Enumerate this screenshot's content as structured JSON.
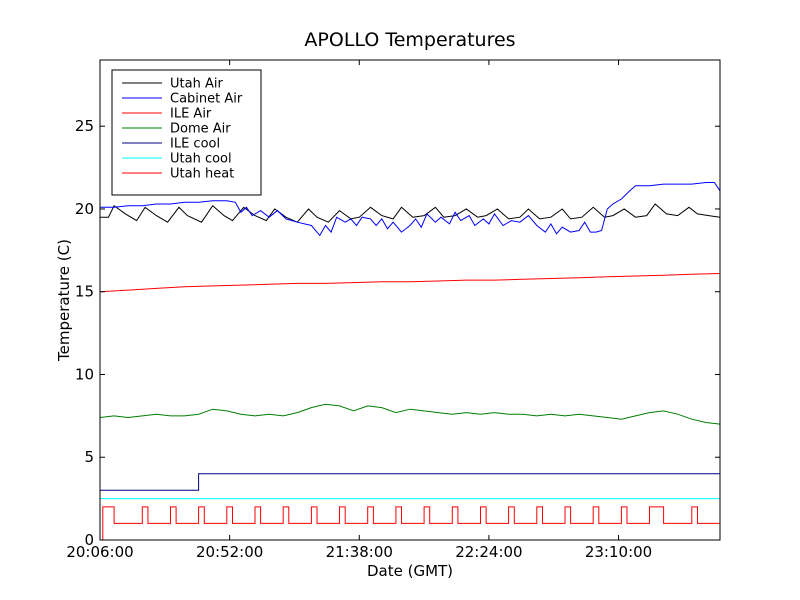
{
  "chart_data": {
    "type": "line",
    "title": "APOLLO Temperatures",
    "xlabel": "Date (GMT)",
    "ylabel": "Temperature (C)",
    "x_unit": "minutes since 20:06:00 GMT",
    "xlim": [
      0,
      220
    ],
    "ylim": [
      0,
      29
    ],
    "x_ticks": [
      {
        "value": 0,
        "label": "20:06:00"
      },
      {
        "value": 46,
        "label": "20:52:00"
      },
      {
        "value": 92,
        "label": "21:38:00"
      },
      {
        "value": 138,
        "label": "22:24:00"
      },
      {
        "value": 184,
        "label": "23:10:00"
      }
    ],
    "y_ticks": [
      {
        "value": 0,
        "label": "0"
      },
      {
        "value": 5,
        "label": "5"
      },
      {
        "value": 10,
        "label": "10"
      },
      {
        "value": 15,
        "label": "15"
      },
      {
        "value": 20,
        "label": "20"
      },
      {
        "value": 25,
        "label": "25"
      }
    ],
    "legend_position": "top-left",
    "series": [
      {
        "name": "Utah Air",
        "color": "#000000",
        "step": false,
        "x": [
          0,
          3,
          5,
          9,
          13,
          16,
          20,
          24,
          28,
          31,
          36,
          40,
          44,
          47,
          51,
          55,
          59,
          62,
          66,
          70,
          74,
          77,
          81,
          85,
          89,
          92,
          96,
          100,
          104,
          107,
          111,
          115,
          119,
          122,
          126,
          130,
          134,
          137,
          141,
          145,
          149,
          152,
          156,
          160,
          164,
          167,
          171,
          175,
          179,
          182,
          186,
          190,
          194,
          197,
          201,
          205,
          209,
          212,
          216,
          220
        ],
        "y": [
          19.5,
          19.5,
          20.2,
          19.7,
          19.3,
          20.1,
          19.6,
          19.2,
          20.1,
          19.6,
          19.2,
          20.2,
          19.6,
          19.3,
          20.1,
          19.6,
          19.3,
          20.0,
          19.5,
          19.2,
          20.0,
          19.5,
          19.2,
          19.9,
          19.4,
          19.5,
          20.1,
          19.6,
          19.4,
          20.1,
          19.5,
          19.6,
          20.1,
          19.5,
          19.6,
          20.0,
          19.5,
          19.6,
          20.0,
          19.4,
          19.5,
          20.0,
          19.4,
          19.5,
          20.0,
          19.4,
          19.5,
          20.1,
          19.5,
          19.6,
          20.0,
          19.5,
          19.6,
          20.3,
          19.7,
          19.6,
          20.1,
          19.7,
          19.6,
          19.5
        ]
      },
      {
        "name": "Cabinet Air",
        "color": "#0000ff",
        "step": false,
        "x": [
          0,
          5,
          10,
          15,
          20,
          25,
          30,
          35,
          40,
          45,
          48,
          50,
          52,
          54,
          57,
          60,
          63,
          66,
          70,
          75,
          78,
          80,
          82,
          84,
          87,
          89,
          91,
          93,
          96,
          98,
          100,
          102,
          104,
          107,
          110,
          112,
          114,
          116,
          119,
          121,
          124,
          126,
          128,
          131,
          133,
          136,
          138,
          140,
          143,
          146,
          149,
          152,
          155,
          158,
          160,
          162,
          164,
          167,
          170,
          172,
          174,
          176,
          178,
          180,
          182,
          185,
          188,
          190,
          195,
          200,
          205,
          210,
          215,
          218,
          220
        ],
        "y": [
          20.1,
          20.1,
          20.2,
          20.2,
          20.3,
          20.3,
          20.4,
          20.4,
          20.5,
          20.5,
          20.4,
          19.8,
          20.1,
          19.6,
          19.9,
          19.5,
          19.9,
          19.4,
          19.2,
          19.0,
          18.4,
          19.0,
          18.6,
          19.5,
          19.2,
          19.4,
          19.0,
          19.5,
          19.4,
          19.0,
          19.4,
          18.8,
          19.2,
          18.6,
          19.0,
          19.4,
          18.9,
          19.7,
          19.2,
          19.5,
          19.1,
          19.8,
          19.3,
          19.6,
          19.0,
          19.4,
          19.1,
          19.7,
          19.0,
          19.3,
          19.2,
          19.6,
          19.0,
          18.6,
          19.1,
          18.5,
          18.9,
          18.6,
          18.7,
          19.2,
          18.6,
          18.6,
          18.7,
          20.0,
          20.3,
          20.6,
          21.1,
          21.4,
          21.4,
          21.5,
          21.5,
          21.5,
          21.6,
          21.6,
          21.1
        ]
      },
      {
        "name": "ILE Air",
        "color": "#ff0000",
        "step": false,
        "x": [
          0,
          10,
          20,
          30,
          40,
          50,
          60,
          70,
          80,
          90,
          100,
          110,
          120,
          130,
          140,
          150,
          160,
          170,
          180,
          190,
          200,
          210,
          220
        ],
        "y": [
          15.0,
          15.1,
          15.2,
          15.3,
          15.35,
          15.4,
          15.45,
          15.5,
          15.5,
          15.55,
          15.6,
          15.6,
          15.65,
          15.7,
          15.7,
          15.75,
          15.8,
          15.85,
          15.9,
          15.95,
          16.0,
          16.05,
          16.1
        ]
      },
      {
        "name": "Dome Air",
        "color": "#008000",
        "step": false,
        "x": [
          0,
          5,
          10,
          15,
          20,
          25,
          30,
          35,
          40,
          45,
          50,
          55,
          60,
          65,
          70,
          75,
          80,
          85,
          90,
          95,
          100,
          105,
          110,
          115,
          120,
          125,
          130,
          135,
          140,
          145,
          150,
          155,
          160,
          165,
          170,
          175,
          180,
          185,
          190,
          195,
          200,
          205,
          210,
          215,
          220
        ],
        "y": [
          7.4,
          7.5,
          7.4,
          7.5,
          7.6,
          7.5,
          7.5,
          7.6,
          7.9,
          7.8,
          7.6,
          7.5,
          7.6,
          7.5,
          7.7,
          8.0,
          8.2,
          8.1,
          7.8,
          8.1,
          8.0,
          7.7,
          7.9,
          7.8,
          7.7,
          7.6,
          7.7,
          7.6,
          7.7,
          7.6,
          7.6,
          7.5,
          7.6,
          7.5,
          7.6,
          7.5,
          7.4,
          7.3,
          7.5,
          7.7,
          7.8,
          7.6,
          7.3,
          7.1,
          7.0
        ]
      },
      {
        "name": "ILE cool",
        "color": "#000080",
        "step": true,
        "x": [
          0,
          35,
          35,
          220
        ],
        "y": [
          3.0,
          3.0,
          4.0,
          4.0
        ]
      },
      {
        "name": "Utah cool",
        "color": "#00ffff",
        "step": false,
        "x": [
          0,
          220
        ],
        "y": [
          2.5,
          2.5
        ]
      },
      {
        "name": "Utah heat",
        "color": "#ff0000",
        "step": true,
        "x": [
          1,
          1,
          2,
          2,
          5,
          5,
          15,
          15,
          17,
          17,
          25,
          25,
          27,
          27,
          35,
          35,
          37,
          37,
          45,
          45,
          47,
          47,
          55,
          55,
          57,
          57,
          65,
          65,
          67,
          67,
          75,
          75,
          77,
          77,
          85,
          85,
          87,
          87,
          95,
          95,
          97,
          97,
          105,
          105,
          107,
          107,
          115,
          115,
          117,
          117,
          125,
          125,
          127,
          127,
          135,
          135,
          137,
          137,
          145,
          145,
          147,
          147,
          155,
          155,
          157,
          157,
          165,
          165,
          167,
          167,
          175,
          175,
          177,
          177,
          185,
          185,
          187,
          187,
          195,
          195,
          200,
          200,
          210,
          210,
          212,
          212,
          220
        ],
        "y": [
          0,
          2,
          2,
          2,
          2,
          1,
          1,
          2,
          2,
          1,
          1,
          2,
          2,
          1,
          1,
          2,
          2,
          1,
          1,
          2,
          2,
          1,
          1,
          2,
          2,
          1,
          1,
          2,
          2,
          1,
          1,
          2,
          2,
          1,
          1,
          2,
          2,
          1,
          1,
          2,
          2,
          1,
          1,
          2,
          2,
          1,
          1,
          2,
          2,
          1,
          1,
          2,
          2,
          1,
          1,
          2,
          2,
          1,
          1,
          2,
          2,
          1,
          1,
          2,
          2,
          1,
          1,
          2,
          2,
          1,
          1,
          2,
          2,
          1,
          1,
          2,
          2,
          1,
          1,
          2,
          2,
          1,
          1,
          2,
          2,
          1,
          1
        ]
      }
    ]
  }
}
